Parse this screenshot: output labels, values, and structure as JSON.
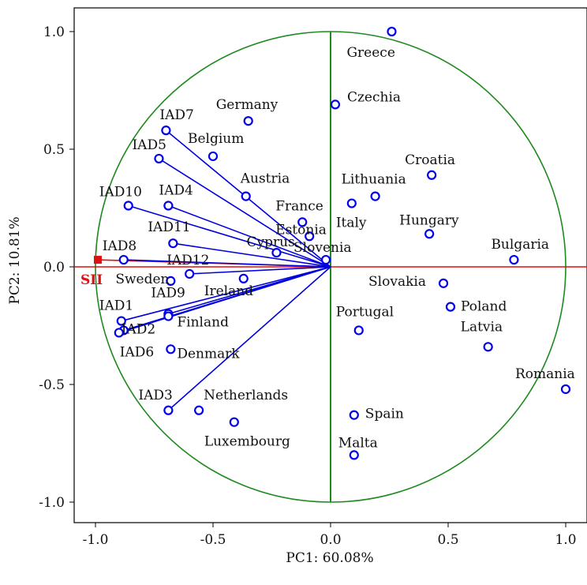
{
  "chart_data": {
    "type": "scatter",
    "subtype": "pca-biplot",
    "xlabel": "PC1: 60.08%",
    "ylabel": "PC2: 10.81%",
    "xlim": [
      -1.1,
      1.1
    ],
    "ylim": [
      -1.1,
      1.1
    ],
    "xticks": [
      "-1.0",
      "-0.5",
      "0.0",
      "0.5",
      "1.0"
    ],
    "yticks": [
      "-1.0",
      "-0.5",
      "0.0",
      "0.5",
      "1.0"
    ],
    "grid": false,
    "colors": {
      "circle": "#1f8a1f",
      "axis_lines": "#1f8a1f",
      "loadings": "#0000dd",
      "points": "#0000ee",
      "supplementary": "#dd1111",
      "text": "#111111"
    },
    "loadings": [
      {
        "name": "IAD7",
        "x": -0.7,
        "y": 0.58
      },
      {
        "name": "IAD5",
        "x": -0.73,
        "y": 0.46
      },
      {
        "name": "IAD10",
        "x": -0.86,
        "y": 0.26
      },
      {
        "name": "IAD4",
        "x": -0.69,
        "y": 0.26
      },
      {
        "name": "IAD11",
        "x": -0.67,
        "y": 0.1
      },
      {
        "name": "IAD8",
        "x": -0.88,
        "y": 0.03
      },
      {
        "name": "IAD12",
        "x": -0.6,
        "y": -0.03
      },
      {
        "name": "IAD9",
        "x": -0.69,
        "y": -0.2
      },
      {
        "name": "IAD1",
        "x": -0.89,
        "y": -0.23
      },
      {
        "name": "IAD2",
        "x": -0.88,
        "y": -0.27
      },
      {
        "name": "IAD6",
        "x": -0.9,
        "y": -0.28
      },
      {
        "name": "IAD3",
        "x": -0.69,
        "y": -0.61
      }
    ],
    "supplementary": {
      "name": "SII",
      "x": -0.99,
      "y": 0.03
    },
    "countries": [
      {
        "name": "Greece",
        "x": 0.26,
        "y": 1.0
      },
      {
        "name": "Czechia",
        "x": 0.02,
        "y": 0.69
      },
      {
        "name": "Germany",
        "x": -0.35,
        "y": 0.62
      },
      {
        "name": "Belgium",
        "x": -0.5,
        "y": 0.47
      },
      {
        "name": "Austria",
        "x": -0.36,
        "y": 0.3
      },
      {
        "name": "Croatia",
        "x": 0.43,
        "y": 0.39
      },
      {
        "name": "Lithuania",
        "x": 0.19,
        "y": 0.3
      },
      {
        "name": "Italy",
        "x": 0.09,
        "y": 0.27
      },
      {
        "name": "France",
        "x": -0.12,
        "y": 0.19
      },
      {
        "name": "Estonia",
        "x": -0.09,
        "y": 0.13
      },
      {
        "name": "Cyprus",
        "x": -0.23,
        "y": 0.06
      },
      {
        "name": "Slovenia",
        "x": -0.02,
        "y": 0.03
      },
      {
        "name": "Hungary",
        "x": 0.42,
        "y": 0.14
      },
      {
        "name": "Bulgaria",
        "x": 0.78,
        "y": 0.03
      },
      {
        "name": "Sweden",
        "x": -0.68,
        "y": -0.06
      },
      {
        "name": "Ireland",
        "x": -0.37,
        "y": -0.05
      },
      {
        "name": "Slovakia",
        "x": 0.48,
        "y": -0.07
      },
      {
        "name": "Poland",
        "x": 0.51,
        "y": -0.17
      },
      {
        "name": "Finland",
        "x": -0.69,
        "y": -0.21
      },
      {
        "name": "Portugal",
        "x": 0.12,
        "y": -0.27
      },
      {
        "name": "Latvia",
        "x": 0.67,
        "y": -0.34
      },
      {
        "name": "Denmark",
        "x": -0.68,
        "y": -0.35
      },
      {
        "name": "Romania",
        "x": 1.0,
        "y": -0.52
      },
      {
        "name": "Netherlands",
        "x": -0.56,
        "y": -0.61
      },
      {
        "name": "Luxembourg",
        "x": -0.41,
        "y": -0.66
      },
      {
        "name": "Spain",
        "x": 0.1,
        "y": -0.63
      },
      {
        "name": "Malta",
        "x": 0.1,
        "y": -0.8
      }
    ]
  }
}
